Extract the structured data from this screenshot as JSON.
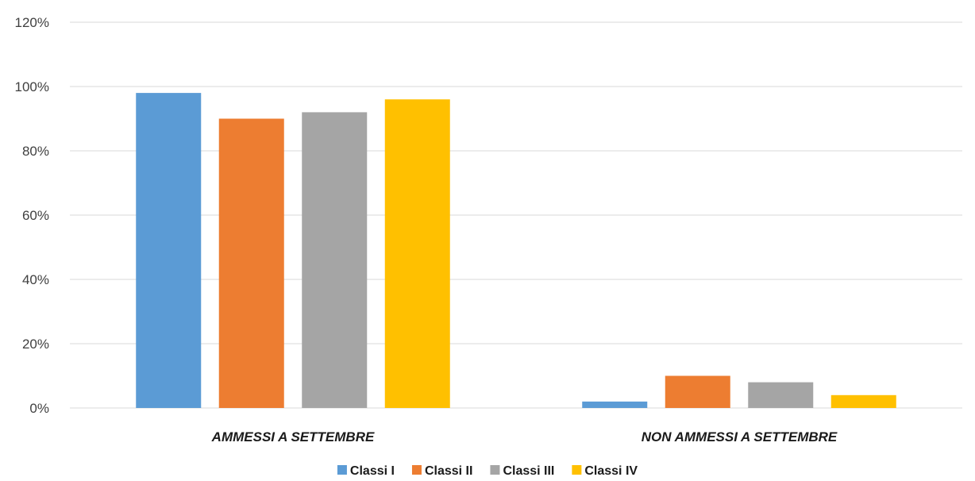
{
  "chart_data": {
    "type": "bar",
    "categories": [
      "AMMESSI A SETTEMBRE",
      "NON AMMESSI A SETTEMBRE"
    ],
    "series": [
      {
        "name": "Classi I",
        "values": [
          98,
          2
        ],
        "color": "#5B9BD5"
      },
      {
        "name": "Classi II",
        "values": [
          90,
          10
        ],
        "color": "#ED7D31"
      },
      {
        "name": "Classi III",
        "values": [
          92,
          8
        ],
        "color": "#A5A5A5"
      },
      {
        "name": "Classi IV",
        "values": [
          96,
          4
        ],
        "color": "#FFC000"
      }
    ],
    "yticks": [
      "0%",
      "20%",
      "40%",
      "60%",
      "80%",
      "100%",
      "120%"
    ],
    "ylim": [
      0,
      120
    ],
    "grid": true,
    "legend_position": "bottom",
    "title": "",
    "xlabel": "",
    "ylabel": ""
  }
}
